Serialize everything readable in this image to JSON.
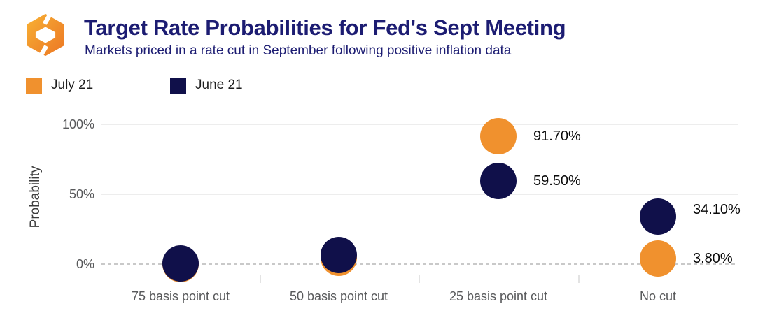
{
  "header": {
    "title": "Target Rate Probabilities for Fed's Sept Meeting",
    "subtitle": "Markets priced in a rate cut in September following positive inflation data",
    "logo_icon": "orange-hexagon-brackets-logo"
  },
  "colors": {
    "title_navy": "#1c1c72",
    "series_orange": "#f0912e",
    "series_navy": "#10104a",
    "axis_text_gray": "#58595b",
    "gridline_gray": "#ededed",
    "zero_line_dash_gray": "#c9c9c9",
    "value_label_black": "#0a0a0a"
  },
  "legend": {
    "items": [
      {
        "label": "July 21",
        "color": "#f0912e"
      },
      {
        "label": "June 21",
        "color": "#10104a"
      }
    ]
  },
  "chart_data": {
    "type": "scatter",
    "title": "Target Rate Probabilities for Fed's Sept Meeting",
    "subtitle": "Markets priced in a rate cut in September following positive inflation data",
    "categories": [
      "75 basis point cut",
      "50 basis point cut",
      "25 basis point cut",
      "No cut"
    ],
    "series": [
      {
        "name": "July 21",
        "color": "#f0912e",
        "values": [
          0.0,
          4.5,
          91.7,
          3.8
        ],
        "point_labels": [
          null,
          null,
          "91.70%",
          "3.80%"
        ]
      },
      {
        "name": "June 21",
        "color": "#10104a",
        "values": [
          0.4,
          6.4,
          59.5,
          34.1
        ],
        "point_labels": [
          null,
          null,
          "59.50%",
          "34.10%"
        ]
      }
    ],
    "xlabel": "",
    "ylabel": "Probability",
    "ylim": [
      0,
      100
    ],
    "grid": "horizontal",
    "legend_position": "top-left"
  },
  "yaxis": {
    "label": "Probability",
    "ticks": [
      {
        "label": "100%",
        "value": 100,
        "line": "solid"
      },
      {
        "label": "50%",
        "value": 50,
        "line": "solid"
      },
      {
        "label": "0%",
        "value": 0,
        "line": "dashed"
      }
    ]
  }
}
